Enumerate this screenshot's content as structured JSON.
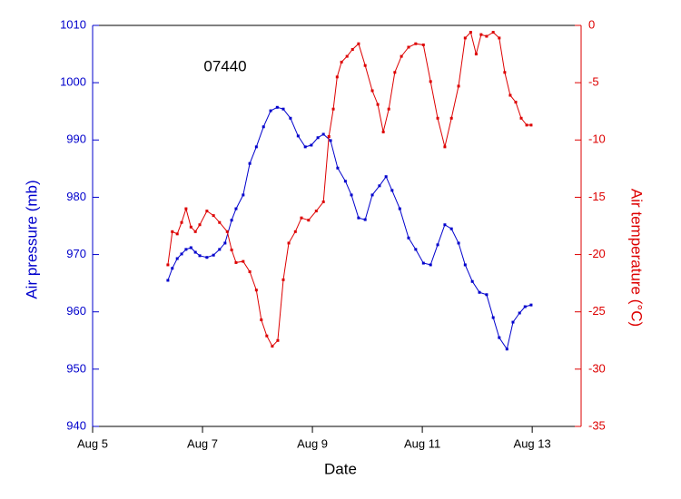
{
  "chart_data": {
    "type": "line",
    "annotation": "07440",
    "xlabel": "Date",
    "ylabel": "Air pressure (mb)",
    "y2label": "Air temperature (°C)",
    "xlim": [
      5,
      13.89
    ],
    "xticks": [
      {
        "value": 5,
        "label": "Aug 5"
      },
      {
        "value": 7,
        "label": "Aug 7"
      },
      {
        "value": 9,
        "label": "Aug 9"
      },
      {
        "value": 11,
        "label": "Aug 11"
      },
      {
        "value": 13,
        "label": "Aug 13"
      }
    ],
    "ylim": [
      940,
      1010
    ],
    "yticks": [
      940,
      950,
      960,
      970,
      980,
      990,
      1000,
      1010
    ],
    "y2lim": [
      -35,
      0
    ],
    "y2ticks": [
      -35,
      -30,
      -25,
      -20,
      -15,
      -10,
      -5,
      0
    ],
    "series": [
      {
        "name": "Air pressure",
        "color": "#0000cc",
        "axis": "y",
        "x": [
          6.37,
          6.45,
          6.54,
          6.62,
          6.7,
          6.79,
          6.87,
          6.95,
          7.08,
          7.2,
          7.31,
          7.41,
          7.53,
          7.61,
          7.74,
          7.86,
          7.98,
          8.11,
          8.24,
          8.36,
          8.47,
          8.6,
          8.74,
          8.87,
          8.98,
          9.1,
          9.2,
          9.33,
          9.46,
          9.6,
          9.71,
          9.84,
          9.96,
          10.09,
          10.22,
          10.34,
          10.45,
          10.59,
          10.75,
          10.88,
          11.02,
          11.15,
          11.28,
          11.41,
          11.53,
          11.66,
          11.78,
          11.91,
          12.04,
          12.17,
          12.29,
          12.4,
          12.54,
          12.65,
          12.77,
          12.87,
          12.98
        ],
        "values": [
          965.5,
          967.6,
          969.3,
          970.1,
          970.9,
          971.2,
          970.4,
          969.8,
          969.5,
          969.9,
          970.9,
          972,
          976,
          978,
          980.4,
          985.9,
          988.8,
          992.3,
          995.1,
          995.7,
          995.4,
          993.8,
          990.7,
          988.8,
          989.1,
          990.4,
          991,
          989.9,
          985.1,
          982.8,
          980.4,
          976.4,
          976.1,
          980.4,
          982,
          983.6,
          981.2,
          978,
          972.9,
          970.9,
          968.5,
          968.2,
          971.7,
          975.2,
          974.5,
          972,
          968.2,
          965.3,
          963.4,
          963,
          959,
          955.5,
          953.5,
          958.2,
          959.8,
          960.9,
          961.2
        ]
      },
      {
        "name": "Air temperature",
        "color": "#dd0000",
        "axis": "y2",
        "x": [
          6.37,
          6.45,
          6.54,
          6.62,
          6.7,
          6.79,
          6.87,
          6.95,
          7.08,
          7.2,
          7.31,
          7.45,
          7.53,
          7.61,
          7.74,
          7.86,
          7.98,
          8.07,
          8.17,
          8.27,
          8.37,
          8.47,
          8.57,
          8.69,
          8.8,
          8.93,
          9.07,
          9.2,
          9.3,
          9.38,
          9.45,
          9.53,
          9.63,
          9.73,
          9.84,
          9.96,
          10.09,
          10.19,
          10.29,
          10.39,
          10.5,
          10.62,
          10.75,
          10.88,
          11.02,
          11.15,
          11.28,
          11.41,
          11.53,
          11.66,
          11.78,
          11.88,
          11.98,
          12.07,
          12.17,
          12.29,
          12.4,
          12.5,
          12.6,
          12.7,
          12.8,
          12.9,
          12.98
        ],
        "values": [
          -20.9,
          -18,
          -18.2,
          -17.2,
          -16,
          -17.6,
          -18,
          -17.4,
          -16.2,
          -16.6,
          -17.2,
          -18,
          -19.6,
          -20.7,
          -20.6,
          -21.5,
          -23.1,
          -25.7,
          -27.1,
          -28,
          -27.5,
          -22.2,
          -19,
          -18,
          -16.8,
          -17,
          -16.2,
          -15.4,
          -9.7,
          -7.3,
          -4.5,
          -3.2,
          -2.7,
          -2.1,
          -1.6,
          -3.5,
          -5.7,
          -6.9,
          -9.3,
          -7.3,
          -4.1,
          -2.7,
          -1.9,
          -1.6,
          -1.7,
          -4.9,
          -8.1,
          -10.6,
          -8.1,
          -5.3,
          -1.1,
          -0.6,
          -2.5,
          -0.8,
          -0.95,
          -0.6,
          -1.1,
          -4.1,
          -6.1,
          -6.7,
          -8.1,
          -8.7,
          -8.7
        ]
      }
    ]
  }
}
